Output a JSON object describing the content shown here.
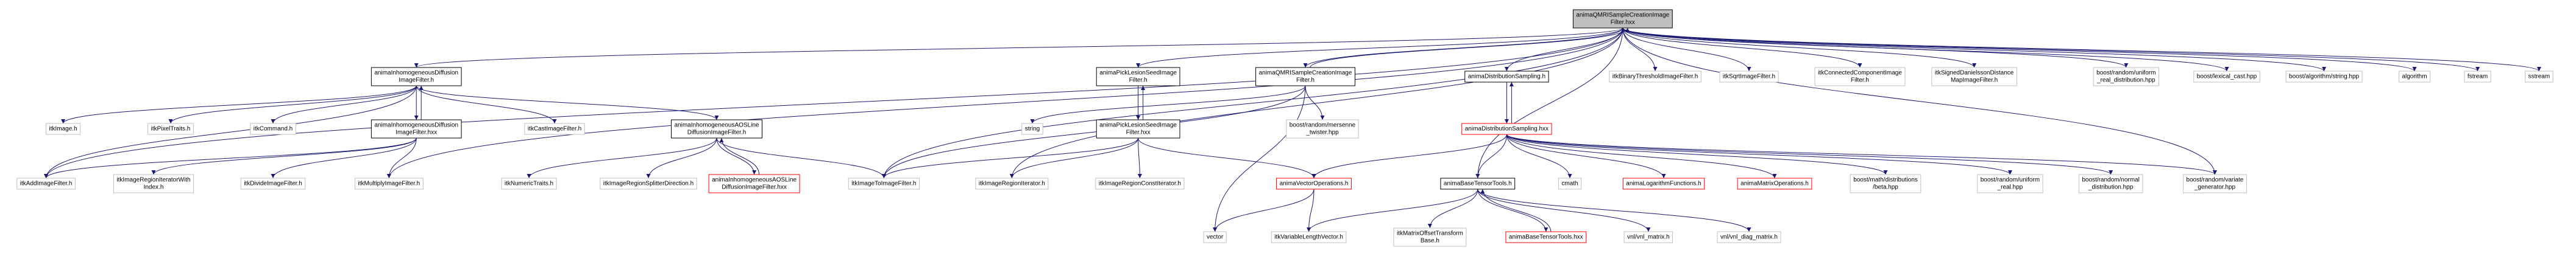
{
  "nodes": [
    {
      "lines": [
        "animaQMRISampleCreationImage",
        "Filter.hxx"
      ]
    },
    {
      "lines": [
        "animaInhomogeneousDiffusion",
        "ImageFilter.h"
      ]
    },
    {
      "lines": [
        "animaPickLesionSeedImage",
        "Filter.h"
      ]
    },
    {
      "lines": [
        "animaQMRISampleCreationImage",
        "Filter.h"
      ]
    },
    {
      "lines": [
        "animaDistributionSampling.h"
      ]
    },
    {
      "lines": [
        "itkBinaryThresholdImageFilter.h"
      ]
    },
    {
      "lines": [
        "itkSqrtImageFilter.h"
      ]
    },
    {
      "lines": [
        "itkConnectedComponentImage",
        "Filter.h"
      ]
    },
    {
      "lines": [
        "itkSignedDanielssonDistance",
        "MapImageFilter.h"
      ]
    },
    {
      "lines": [
        "boost/random/uniform",
        "_real_distribution.hpp"
      ]
    },
    {
      "lines": [
        "boost/lexical_cast.hpp"
      ]
    },
    {
      "lines": [
        "boost/algorithm/string.hpp"
      ]
    },
    {
      "lines": [
        "algorithm"
      ]
    },
    {
      "lines": [
        "fstream"
      ]
    },
    {
      "lines": [
        "sstream"
      ]
    },
    {
      "lines": [
        "itkImage.h"
      ]
    },
    {
      "lines": [
        "itkPixelTraits.h"
      ]
    },
    {
      "lines": [
        "itkCommand.h"
      ]
    },
    {
      "lines": [
        "animaInhomogeneousDiffusion",
        "ImageFilter.hxx"
      ]
    },
    {
      "lines": [
        "itkCastImageFilter.h"
      ]
    },
    {
      "lines": [
        "animaInhomogeneousAOSLine",
        "DiffusionImageFilter.h"
      ]
    },
    {
      "lines": [
        "string"
      ]
    },
    {
      "lines": [
        "animaPickLesionSeedImage",
        "Filter.hxx"
      ]
    },
    {
      "lines": [
        "boost/random/mersenne",
        "_twister.hpp"
      ]
    },
    {
      "lines": [
        "animaDistributionSampling.hxx"
      ]
    },
    {
      "lines": [
        "itkAddImageFilter.h"
      ]
    },
    {
      "lines": [
        "itkImageRegionIteratorWith",
        "Index.h"
      ]
    },
    {
      "lines": [
        "itkDivideImageFilter.h"
      ]
    },
    {
      "lines": [
        "itkMultiplyImageFilter.h"
      ]
    },
    {
      "lines": [
        "itkNumericTraits.h"
      ]
    },
    {
      "lines": [
        "itkImageRegionSplitterDirection.h"
      ]
    },
    {
      "lines": [
        "animaInhomogeneousAOSLine",
        "DiffusionImageFilter.hxx"
      ]
    },
    {
      "lines": [
        "itkImageToImageFilter.h"
      ]
    },
    {
      "lines": [
        "itkImageRegionIterator.h"
      ]
    },
    {
      "lines": [
        "itkImageRegionConstIterator.h"
      ]
    },
    {
      "lines": [
        "animaVectorOperations.h"
      ]
    },
    {
      "lines": [
        "animaBaseTensorTools.h"
      ]
    },
    {
      "lines": [
        "cmath"
      ]
    },
    {
      "lines": [
        "animaLogarithmFunctions.h"
      ]
    },
    {
      "lines": [
        "animaMatrixOperations.h"
      ]
    },
    {
      "lines": [
        "boost/math/distributions",
        "/beta.hpp"
      ]
    },
    {
      "lines": [
        "boost/random/uniform",
        "_real.hpp"
      ]
    },
    {
      "lines": [
        "boost/random/normal",
        "_distribution.hpp"
      ]
    },
    {
      "lines": [
        "boost/random/variate",
        "_generator.hpp"
      ]
    },
    {
      "lines": [
        "vector"
      ]
    },
    {
      "lines": [
        "itkVariableLengthVector.h"
      ]
    },
    {
      "lines": [
        "itkMatrixOffsetTransform",
        "Base.h"
      ]
    },
    {
      "lines": [
        "animaBaseTensorTools.hxx"
      ]
    },
    {
      "lines": [
        "vnl/vnl_matrix.h"
      ]
    },
    {
      "lines": [
        "vnl/vnl_diag_matrix.h"
      ]
    }
  ]
}
